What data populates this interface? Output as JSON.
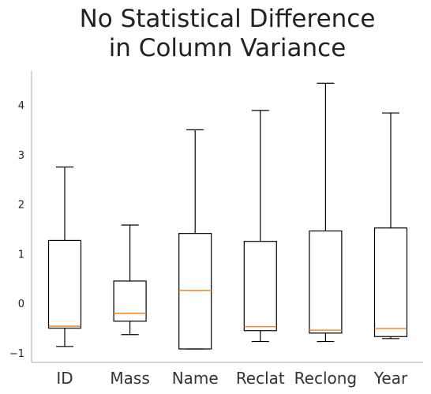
{
  "chart_data": {
    "type": "box",
    "title": [
      "No Statistical Difference",
      "in Column Variance"
    ],
    "xlabel": "",
    "ylabel": "",
    "ylim": [
      -1.15,
      4.65
    ],
    "yticks": [
      -1,
      0,
      1,
      2,
      3,
      4
    ],
    "grid": false,
    "categories": [
      "ID",
      "Mass",
      "Name",
      "Reclat",
      "Reclong",
      "Year"
    ],
    "boxes": [
      {
        "name": "ID",
        "whisker_low": -0.87,
        "q1": -0.5,
        "median": -0.46,
        "q3": 1.27,
        "whisker_high": 2.75
      },
      {
        "name": "Mass",
        "whisker_low": -0.63,
        "q1": -0.36,
        "median": -0.2,
        "q3": 0.45,
        "whisker_high": 1.58
      },
      {
        "name": "Name",
        "whisker_low": -0.92,
        "q1": -0.92,
        "median": 0.26,
        "q3": 1.41,
        "whisker_high": 3.5
      },
      {
        "name": "Reclat",
        "whisker_low": -0.77,
        "q1": -0.55,
        "median": -0.47,
        "q3": 1.25,
        "whisker_high": 3.89
      },
      {
        "name": "Reclong",
        "whisker_low": -0.77,
        "q1": -0.6,
        "median": -0.54,
        "q3": 1.46,
        "whisker_high": 4.44
      },
      {
        "name": "Year",
        "whisker_low": -0.71,
        "q1": -0.67,
        "median": -0.51,
        "q3": 1.52,
        "whisker_high": 3.84
      }
    ],
    "colors": {
      "box": "#000000",
      "median": "#ff7f0e",
      "axis": "#aaaaaa",
      "text": "#222222"
    }
  }
}
